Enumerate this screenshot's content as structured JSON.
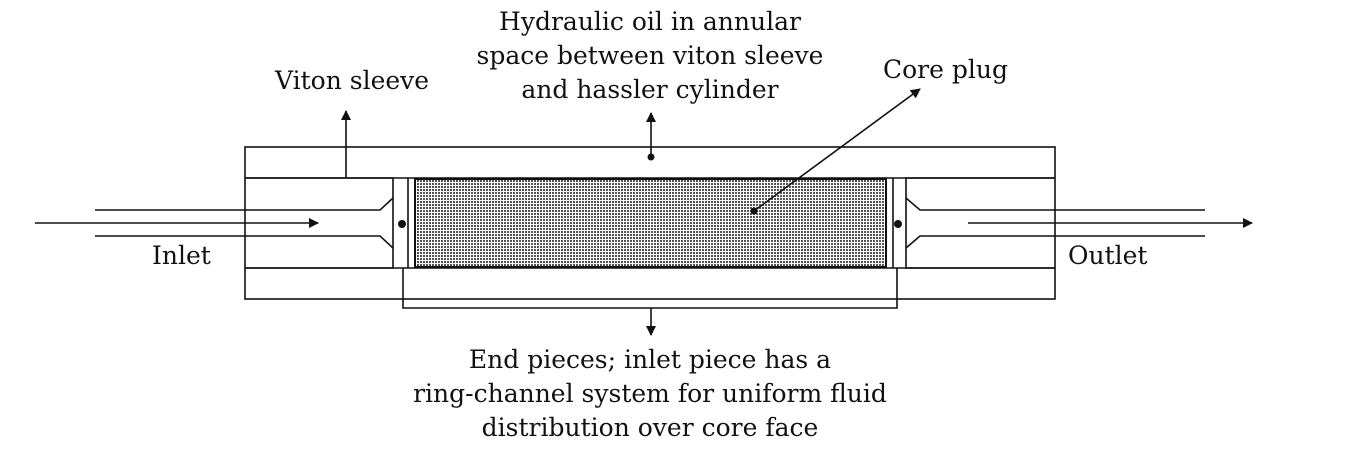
{
  "labels": {
    "hydraulic_oil": [
      "Hydraulic oil in annular",
      "space between viton sleeve",
      "and hassler cylinder"
    ],
    "viton_sleeve": "Viton sleeve",
    "core_plug": "Core plug",
    "inlet": "Inlet",
    "outlet": "Outlet",
    "end_pieces": [
      "End pieces; inlet piece has a",
      "ring-channel system for uniform fluid",
      "distribution over core face"
    ]
  },
  "colors": {
    "line": "#111111",
    "core_fill": "#d0d0d0",
    "background": "#ffffff"
  }
}
